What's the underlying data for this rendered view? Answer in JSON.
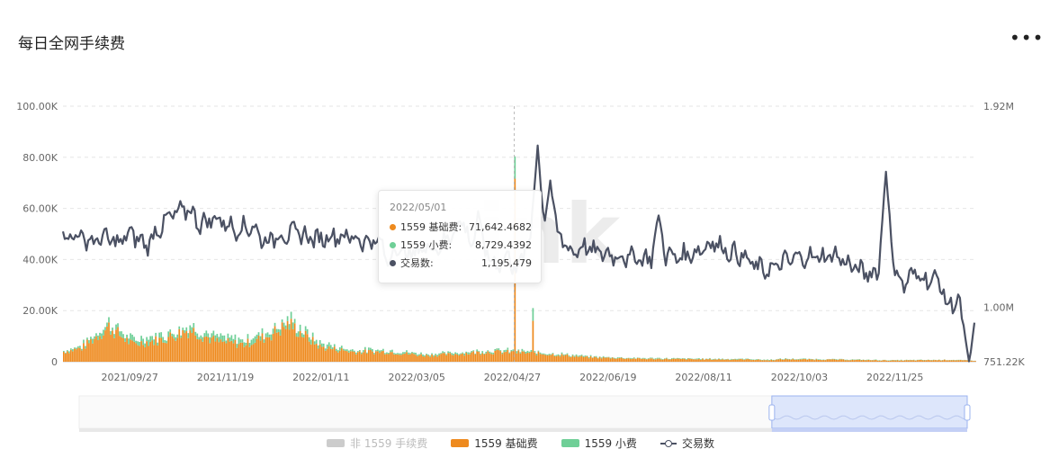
{
  "header": {
    "title": "每日全网手续费",
    "more_label": "•••"
  },
  "colors": {
    "base_fee": "#ee8a1e",
    "tip": "#6fcf97",
    "tx_line": "#4b5163",
    "non_1559": "#cccccc",
    "zoom_fill": "#dde6fb",
    "zoom_border": "#9bb3ef"
  },
  "watermark": "ink",
  "chart_data": {
    "type": "bar",
    "title": "每日全网手续费",
    "x_ticks": [
      "2021/09/27",
      "2021/11/19",
      "2022/01/11",
      "2022/03/05",
      "2022/04/27",
      "2022/06/19",
      "2022/08/11",
      "2022/10/03",
      "2022/11/25"
    ],
    "y_left_ticks": [
      "0",
      "20.00K",
      "40.00K",
      "60.00K",
      "80.00K",
      "100.00K"
    ],
    "y_left_range": [
      0,
      100000
    ],
    "y_right_ticks": [
      "751.22K",
      "1.00M",
      "1.92M"
    ],
    "y_right_range": [
      751220,
      1920000
    ],
    "grid": true,
    "legend_position": "bottom",
    "series": [
      {
        "name": "非 1559 手续费",
        "type": "bar",
        "enabled": false
      },
      {
        "name": "1559 基础费",
        "type": "bar",
        "anchors": [
          [
            0,
            4000
          ],
          [
            10,
            5500
          ],
          [
            25,
            14000
          ],
          [
            38,
            7000
          ],
          [
            55,
            9000
          ],
          [
            70,
            13000
          ],
          [
            85,
            8000
          ],
          [
            100,
            7000
          ],
          [
            112,
            10000
          ],
          [
            125,
            15000
          ],
          [
            142,
            6000
          ],
          [
            160,
            4000
          ],
          [
            180,
            4000
          ],
          [
            200,
            2500
          ],
          [
            215,
            3000
          ],
          [
            235,
            4000
          ],
          [
            250,
            3800
          ],
          [
            270,
            3000
          ],
          [
            290,
            1800
          ],
          [
            320,
            1200
          ],
          [
            350,
            1000
          ],
          [
            380,
            900
          ],
          [
            390,
            600
          ],
          [
            400,
            1000
          ],
          [
            430,
            800
          ],
          [
            460,
            500
          ],
          [
            490,
            700
          ],
          [
            505,
            400
          ]
        ]
      },
      {
        "name": "1559 小费",
        "type": "bar",
        "anchors": [
          [
            0,
            400
          ],
          [
            25,
            2000
          ],
          [
            70,
            1800
          ],
          [
            125,
            2200
          ],
          [
            160,
            800
          ],
          [
            215,
            600
          ],
          [
            250,
            700
          ],
          [
            300,
            300
          ],
          [
            505,
            100
          ]
        ]
      },
      {
        "name": "交易数",
        "type": "line",
        "axis": "right",
        "anchors": [
          [
            0,
            1320000
          ],
          [
            8,
            1330000
          ],
          [
            16,
            1300000
          ],
          [
            24,
            1320000
          ],
          [
            30,
            1290000
          ],
          [
            38,
            1340000
          ],
          [
            46,
            1280000
          ],
          [
            52,
            1350000
          ],
          [
            60,
            1420000
          ],
          [
            70,
            1450000
          ],
          [
            76,
            1380000
          ],
          [
            85,
            1410000
          ],
          [
            95,
            1360000
          ],
          [
            105,
            1370000
          ],
          [
            112,
            1300000
          ],
          [
            120,
            1330000
          ],
          [
            130,
            1340000
          ],
          [
            140,
            1310000
          ],
          [
            150,
            1330000
          ],
          [
            160,
            1320000
          ],
          [
            170,
            1300000
          ],
          [
            180,
            1300000
          ],
          [
            190,
            1240000
          ],
          [
            200,
            1270000
          ],
          [
            210,
            1280000
          ],
          [
            216,
            1350000
          ],
          [
            222,
            1400000
          ],
          [
            228,
            1210000
          ],
          [
            234,
            1260000
          ],
          [
            240,
            1190000
          ],
          [
            246,
            1230000
          ],
          [
            252,
            1160000
          ],
          [
            258,
            1310000
          ],
          [
            264,
            1330000
          ],
          [
            270,
            1330000
          ],
          [
            276,
            1320000
          ],
          [
            282,
            1250000
          ],
          [
            288,
            1280000
          ],
          [
            296,
            1250000
          ],
          [
            305,
            1240000
          ],
          [
            312,
            1230000
          ],
          [
            318,
            1230000
          ],
          [
            324,
            1220000
          ],
          [
            330,
            1240000
          ],
          [
            340,
            1230000
          ],
          [
            350,
            1250000
          ],
          [
            360,
            1300000
          ],
          [
            370,
            1250000
          ],
          [
            375,
            1240000
          ],
          [
            385,
            1180000
          ],
          [
            392,
            1170000
          ],
          [
            400,
            1210000
          ],
          [
            410,
            1230000
          ],
          [
            420,
            1230000
          ],
          [
            428,
            1240000
          ],
          [
            438,
            1180000
          ],
          [
            448,
            1150000
          ],
          [
            458,
            1220000
          ],
          [
            466,
            1100000
          ],
          [
            472,
            1160000
          ],
          [
            478,
            1130000
          ],
          [
            486,
            1120000
          ],
          [
            490,
            1000000
          ],
          [
            496,
            1040000
          ],
          [
            502,
            750000
          ],
          [
            505,
            880000
          ]
        ],
        "spikes": [
          [
            180,
            1190000
          ],
          [
            230,
            1440000
          ],
          [
            263,
            1740000
          ],
          [
            270,
            1580000
          ],
          [
            330,
            1420000
          ],
          [
            456,
            1620000
          ]
        ]
      }
    ],
    "tooltip": {
      "date": "2022/05/01",
      "rows": [
        {
          "label": "1559 基础费:",
          "value": "71,642.4682"
        },
        {
          "label": "1559 小费:",
          "value": "8,729.4392"
        },
        {
          "label": "交易数:",
          "value": "1,195,479"
        }
      ],
      "bar_values": {
        "base_fee": 71642.4682,
        "tip": 8729.4392,
        "tx": 1195479
      },
      "bar_index": 250
    },
    "zoom_window": [
      0.78,
      1.0
    ]
  },
  "legend": {
    "non1559": "非 1559 手续费",
    "base": "1559 基础费",
    "tip": "1559 小费",
    "tx": "交易数"
  }
}
